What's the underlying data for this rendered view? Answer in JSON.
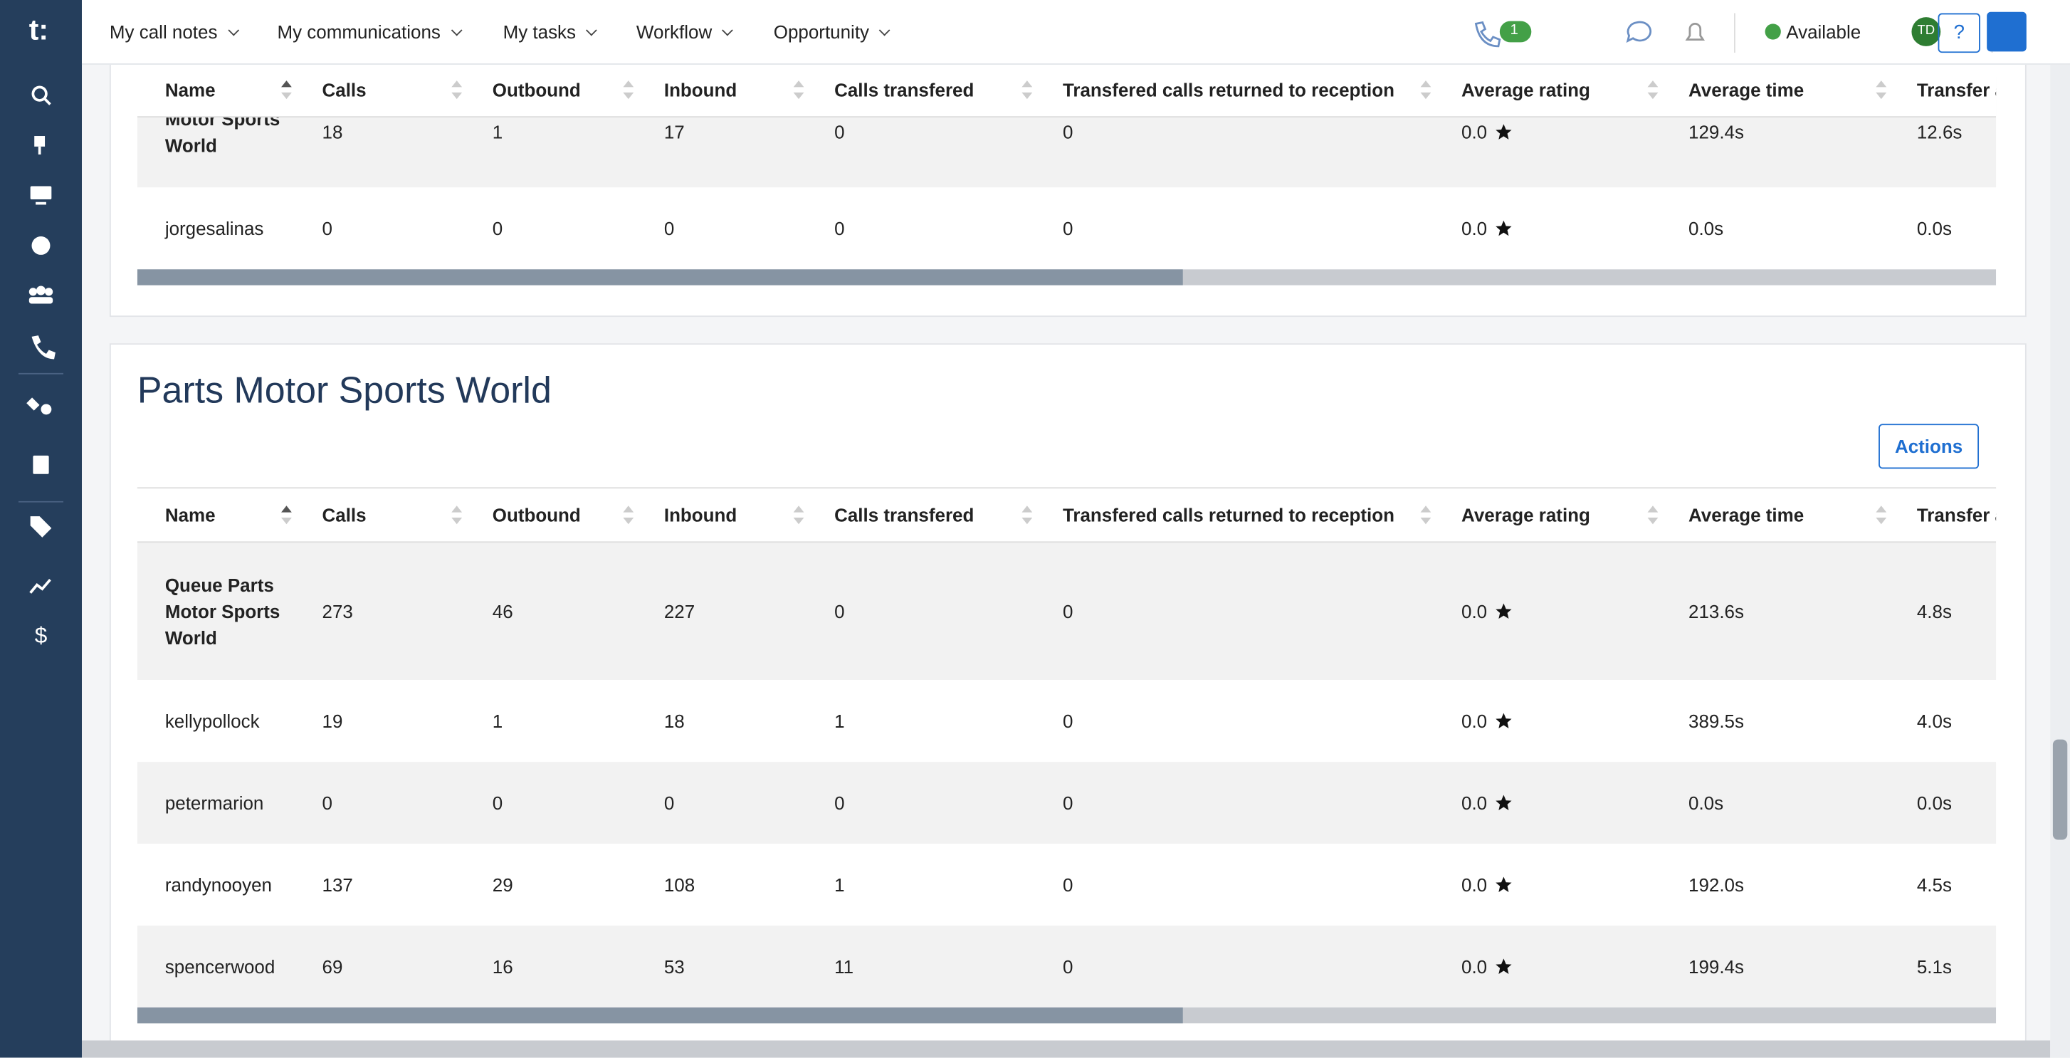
{
  "logo": "t:",
  "menu": [
    "My call notes",
    "My communications",
    "My tasks",
    "Workflow",
    "Opportunity"
  ],
  "call_badge": "1",
  "status": "Available",
  "avatar": "TD",
  "help": "?",
  "columns": [
    "Name",
    "Calls",
    "Outbound",
    "Inbound",
    "Calls transfered",
    "Transfered calls returned to reception",
    "Average rating",
    "Average time",
    "Transfer a"
  ],
  "section1": {
    "rows": [
      [
        "Motor Sports World",
        "18",
        "1",
        "17",
        "0",
        "0",
        "0.0",
        "129.4s",
        "12.6s"
      ],
      [
        "jorgesalinas",
        "0",
        "0",
        "0",
        "0",
        "0",
        "0.0",
        "0.0s",
        "0.0s"
      ]
    ]
  },
  "section2": {
    "title": "Parts Motor Sports World",
    "action": "Actions",
    "rows": [
      [
        "Queue Parts Motor Sports World",
        "273",
        "46",
        "227",
        "0",
        "0",
        "0.0",
        "213.6s",
        "4.8s"
      ],
      [
        "kellypollock",
        "19",
        "1",
        "18",
        "1",
        "0",
        "0.0",
        "389.5s",
        "4.0s"
      ],
      [
        "petermarion",
        "0",
        "0",
        "0",
        "0",
        "0",
        "0.0",
        "0.0s",
        "0.0s"
      ],
      [
        "randynooyen",
        "137",
        "29",
        "108",
        "1",
        "0",
        "0.0",
        "192.0s",
        "4.5s"
      ],
      [
        "spencerwood",
        "69",
        "16",
        "53",
        "11",
        "0",
        "0.0",
        "199.4s",
        "5.1s"
      ]
    ]
  }
}
